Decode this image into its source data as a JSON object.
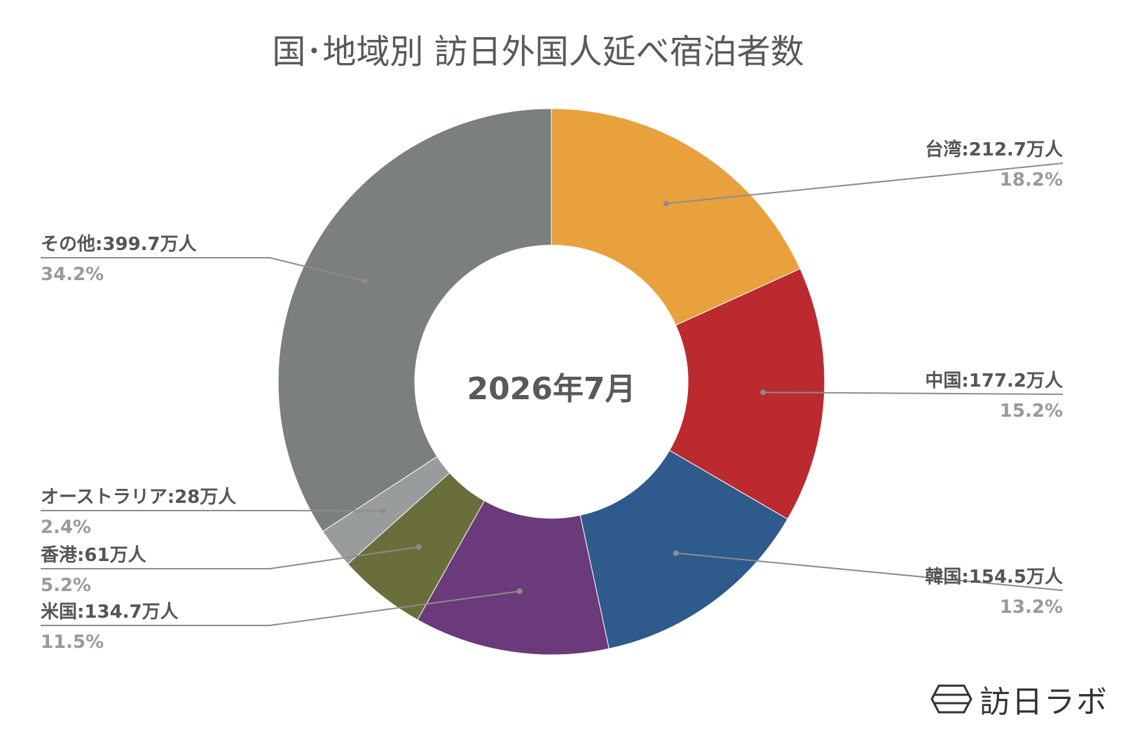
{
  "chart_data": {
    "type": "pie",
    "title": "国･地域別 訪日外国人延べ宿泊者数",
    "center_label": "2026年7月",
    "series": [
      {
        "name": "台湾",
        "value_label": "212.7万人",
        "value": 212.7,
        "percent_label": "18.2%",
        "percent": 18.2,
        "color": "#E8A13C"
      },
      {
        "name": "中国",
        "value_label": "177.2万人",
        "value": 177.2,
        "percent_label": "15.2%",
        "percent": 15.2,
        "color": "#BB2A2F"
      },
      {
        "name": "韓国",
        "value_label": "154.5万人",
        "value": 154.5,
        "percent_label": "13.2%",
        "percent": 13.2,
        "color": "#2E5A8C"
      },
      {
        "name": "米国",
        "value_label": "134.7万人",
        "value": 134.7,
        "percent_label": "11.5%",
        "percent": 11.5,
        "color": "#6B3A7A"
      },
      {
        "name": "香港",
        "value_label": "61万人",
        "value": 61,
        "percent_label": "5.2%",
        "percent": 5.2,
        "color": "#6A6E3A"
      },
      {
        "name": "オーストラリア",
        "value_label": "28万人",
        "value": 28,
        "percent_label": "2.4%",
        "percent": 2.4,
        "color": "#999C9C"
      },
      {
        "name": "その他",
        "value_label": "399.7万人",
        "value": 399.7,
        "percent_label": "34.2%",
        "percent": 34.2,
        "color": "#7C7F80"
      }
    ]
  },
  "brand": {
    "name": "訪日ラボ"
  }
}
